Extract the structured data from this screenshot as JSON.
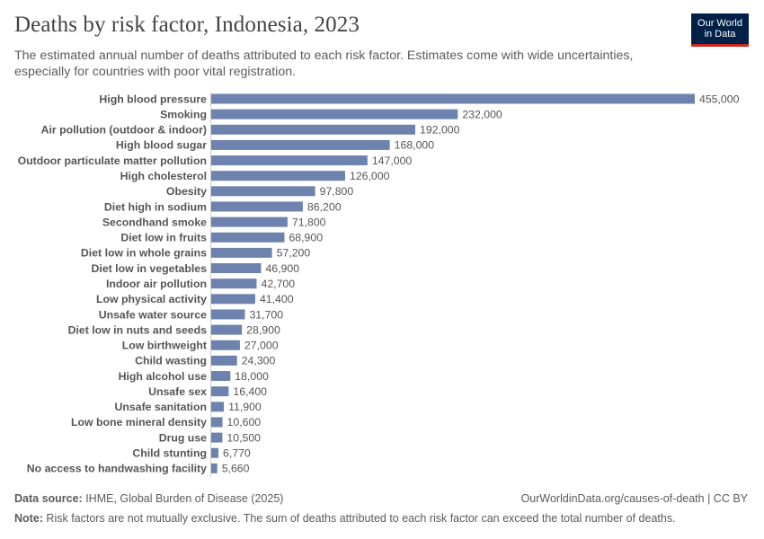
{
  "header": {
    "title": "Deaths by risk factor, Indonesia, 2023",
    "subtitle": "The estimated annual number of deaths attributed to each risk factor. Estimates come with wide uncertainties, especially for countries with poor vital registration.",
    "logo_line1": "Our World",
    "logo_line2": "in Data"
  },
  "footer": {
    "source_label": "Data source:",
    "source_text": " IHME, Global Burden of Disease (2025)",
    "url_text": "OurWorldinData.org/causes-of-death | CC BY",
    "note_label": "Note:",
    "note_text": " Risk factors are not mutually exclusive. The sum of deaths attributed to each risk factor can exceed the total number of deaths."
  },
  "colors": {
    "bar": "#6d83ad",
    "logo_bg": "#002147",
    "logo_accent": "#ce261e"
  },
  "chart_data": {
    "type": "bar",
    "orientation": "horizontal",
    "title": "Deaths by risk factor, Indonesia, 2023",
    "xlabel": "",
    "ylabel": "",
    "xlim": [
      0,
      455000
    ],
    "categories": [
      "High blood pressure",
      "Smoking",
      "Air pollution (outdoor & indoor)",
      "High blood sugar",
      "Outdoor particulate matter pollution",
      "High cholesterol",
      "Obesity",
      "Diet high in sodium",
      "Secondhand smoke",
      "Diet low in fruits",
      "Diet low in whole grains",
      "Diet low in vegetables",
      "Indoor air pollution",
      "Low physical activity",
      "Unsafe water source",
      "Diet low in nuts and seeds",
      "Low birthweight",
      "Child wasting",
      "High alcohol use",
      "Unsafe sex",
      "Unsafe sanitation",
      "Low bone mineral density",
      "Drug use",
      "Child stunting",
      "No access to handwashing facility"
    ],
    "values": [
      455000,
      232000,
      192000,
      168000,
      147000,
      126000,
      97800,
      86200,
      71800,
      68900,
      57200,
      46900,
      42700,
      41400,
      31700,
      28900,
      27000,
      24300,
      18000,
      16400,
      11900,
      10600,
      10500,
      6770,
      5660
    ],
    "value_labels": [
      "455,000",
      "232,000",
      "192,000",
      "168,000",
      "147,000",
      "126,000",
      "97,800",
      "86,200",
      "71,800",
      "68,900",
      "57,200",
      "46,900",
      "42,700",
      "41,400",
      "31,700",
      "28,900",
      "27,000",
      "24,300",
      "18,000",
      "16,400",
      "11,900",
      "10,600",
      "10,500",
      "6,770",
      "5,660"
    ]
  }
}
